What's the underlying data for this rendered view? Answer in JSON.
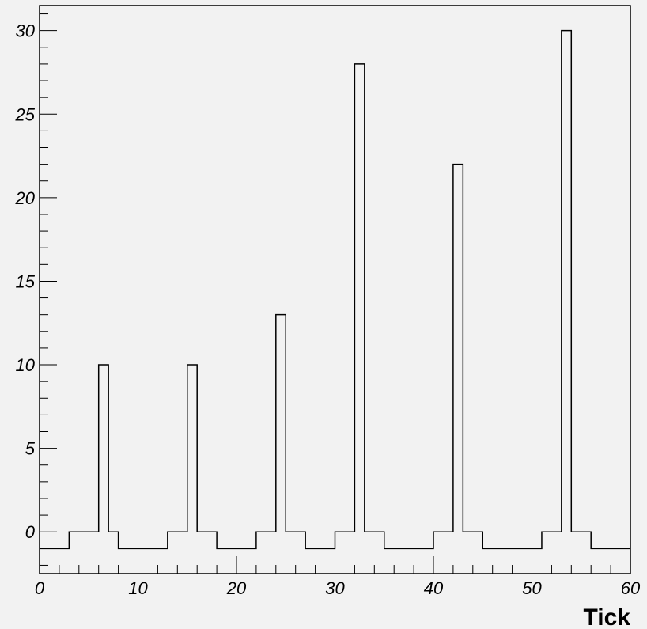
{
  "chart_data": {
    "type": "histogram",
    "xlabel": "Tick",
    "ylabel": "",
    "xlim": [
      0,
      60
    ],
    "ylim": [
      -2.5,
      31.5
    ],
    "x_ticks": [
      0,
      10,
      20,
      30,
      40,
      50,
      60
    ],
    "x_tick_labels": [
      "0",
      "10",
      "20",
      "30",
      "40",
      "50",
      "60"
    ],
    "y_ticks": [
      0,
      5,
      10,
      15,
      20,
      25,
      30
    ],
    "y_tick_labels": [
      "0",
      "5",
      "10",
      "15",
      "20",
      "25",
      "30"
    ],
    "grid": false,
    "line_color": "#000000",
    "background_color": "#f2f2f2",
    "steps": [
      {
        "x0": 0,
        "x1": 3,
        "y": -1
      },
      {
        "x0": 3,
        "x1": 6,
        "y": 0
      },
      {
        "x0": 6,
        "x1": 7,
        "y": 10
      },
      {
        "x0": 7,
        "x1": 8,
        "y": 0
      },
      {
        "x0": 8,
        "x1": 13,
        "y": -1
      },
      {
        "x0": 13,
        "x1": 15,
        "y": 0
      },
      {
        "x0": 15,
        "x1": 16,
        "y": 10
      },
      {
        "x0": 16,
        "x1": 18,
        "y": 0
      },
      {
        "x0": 18,
        "x1": 22,
        "y": -1
      },
      {
        "x0": 22,
        "x1": 24,
        "y": 0
      },
      {
        "x0": 24,
        "x1": 25,
        "y": 13
      },
      {
        "x0": 25,
        "x1": 27,
        "y": 0
      },
      {
        "x0": 27,
        "x1": 30,
        "y": -1
      },
      {
        "x0": 30,
        "x1": 32,
        "y": 0
      },
      {
        "x0": 32,
        "x1": 33,
        "y": 28
      },
      {
        "x0": 33,
        "x1": 35,
        "y": 0
      },
      {
        "x0": 35,
        "x1": 40,
        "y": -1
      },
      {
        "x0": 40,
        "x1": 42,
        "y": 0
      },
      {
        "x0": 42,
        "x1": 43,
        "y": 22
      },
      {
        "x0": 43,
        "x1": 45,
        "y": 0
      },
      {
        "x0": 45,
        "x1": 51,
        "y": -1
      },
      {
        "x0": 51,
        "x1": 53,
        "y": 0
      },
      {
        "x0": 53,
        "x1": 54,
        "y": 30
      },
      {
        "x0": 54,
        "x1": 56,
        "y": 0
      },
      {
        "x0": 56,
        "x1": 60,
        "y": -1
      }
    ]
  }
}
